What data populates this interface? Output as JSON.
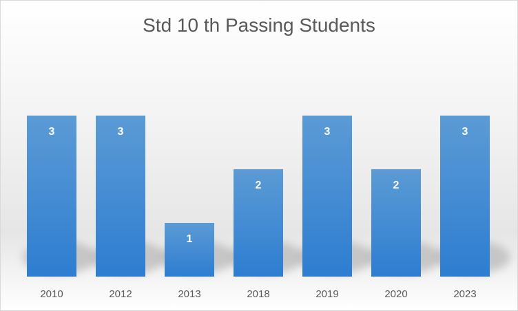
{
  "chart_data": {
    "type": "bar",
    "title": "Std 10 th Passing Students",
    "categories": [
      "2010",
      "2012",
      "2013",
      "2018",
      "2019",
      "2020",
      "2023"
    ],
    "series": [
      {
        "values": [
          3,
          3,
          1,
          2,
          3,
          2,
          3
        ]
      }
    ],
    "ylim": [
      0,
      3
    ],
    "grid": false,
    "legend": "none",
    "data_labels": true,
    "colors": {
      "bar": "#4a90d9",
      "bar_top": "#5b9bd5",
      "bar_bottom": "#2e7dd1",
      "label": "#ffffff",
      "tick": "#595959"
    }
  }
}
